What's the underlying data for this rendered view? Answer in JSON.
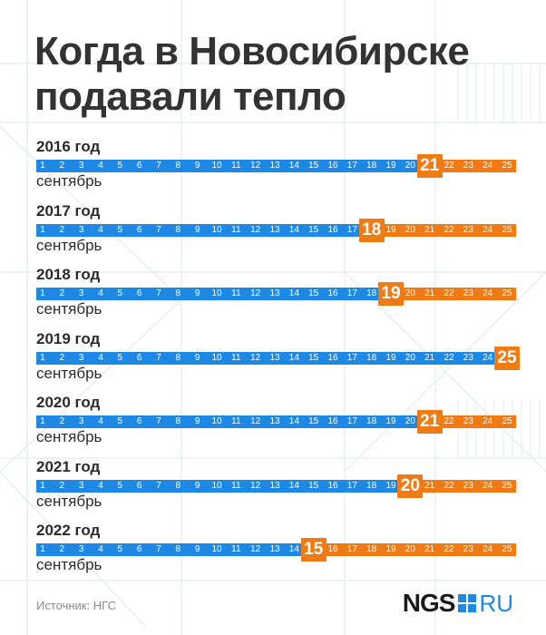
{
  "title": "Когда в Новосибирске подавали тепло",
  "source": "Источник: НГС",
  "logo": {
    "main": "NGS",
    "suffix": "RU",
    "icon": "logo-square-icon"
  },
  "colors": {
    "before": "#1e88e5",
    "after": "#f07a14",
    "text": "#333333",
    "bg_lines": "#dce4ec"
  },
  "chart_data": {
    "type": "timeline",
    "title": "Когда в Новосибирске подавали тепло",
    "month": "сентябрь",
    "days": [
      1,
      2,
      3,
      4,
      5,
      6,
      7,
      8,
      9,
      10,
      11,
      12,
      13,
      14,
      15,
      16,
      17,
      18,
      19,
      20,
      21,
      22,
      23,
      24,
      25
    ],
    "x_range": [
      1,
      25
    ],
    "rows": [
      {
        "year": "2016 год",
        "heat_day": 21
      },
      {
        "year": "2017 год",
        "heat_day": 18
      },
      {
        "year": "2018 год",
        "heat_day": 19
      },
      {
        "year": "2019 год",
        "heat_day": 25
      },
      {
        "year": "2020 год",
        "heat_day": 21
      },
      {
        "year": "2021 год",
        "heat_day": 20
      },
      {
        "year": "2022 год",
        "heat_day": 15
      }
    ]
  }
}
